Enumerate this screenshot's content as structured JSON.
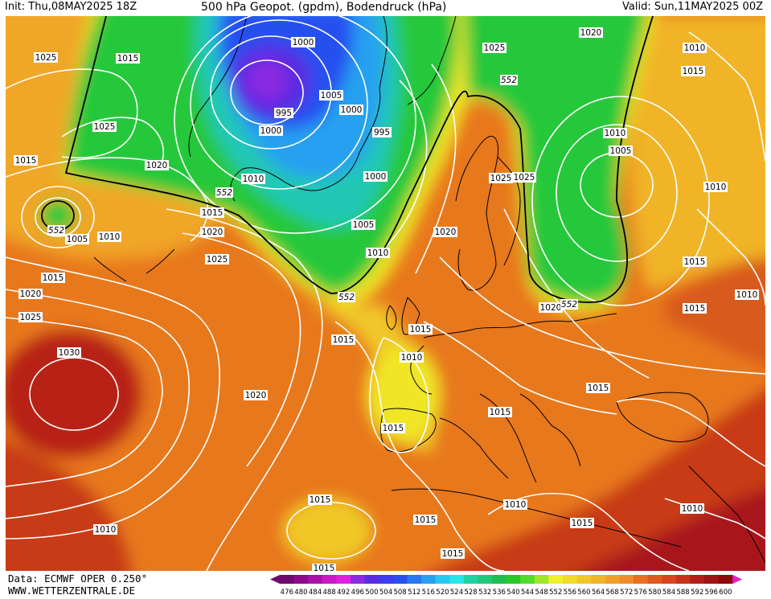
{
  "header": {
    "init": "Init: Thu,08MAY2025 18Z",
    "title": "500 hPa Geopot. (gpdm), Bodendruck (hPa)",
    "valid": "Valid: Sun,11MAY2025 00Z"
  },
  "footer": {
    "data_source": "Data: ECMWF OPER 0.250°",
    "website": "WWW.WETTERZENTRALE.DE"
  },
  "legend": {
    "values": [
      "476",
      "480",
      "484",
      "488",
      "492",
      "496",
      "500",
      "504",
      "508",
      "512",
      "516",
      "520",
      "524",
      "528",
      "532",
      "536",
      "540",
      "544",
      "548",
      "552",
      "556",
      "560",
      "564",
      "568",
      "572",
      "576",
      "580",
      "584",
      "588",
      "592",
      "596",
      "600"
    ],
    "colors": [
      "#6e0a6e",
      "#8c0a8c",
      "#aa10aa",
      "#c818c8",
      "#e020e0",
      "#8a2be2",
      "#5a2be2",
      "#3c3cf0",
      "#2850f0",
      "#2878f0",
      "#28a0f0",
      "#28c8f0",
      "#28e6e6",
      "#20d2a0",
      "#20c878",
      "#20be50",
      "#28c828",
      "#50dc28",
      "#a0e628",
      "#f0f028",
      "#f0dc28",
      "#f0c828",
      "#f0b428",
      "#f0a028",
      "#f08c28",
      "#e87020",
      "#e05a1e",
      "#d8461c",
      "#c8321a",
      "#b41e18",
      "#a01414",
      "#8c0a0a"
    ]
  },
  "map": {
    "isobar_labels": [
      {
        "id": "l1",
        "text": "1025"
      },
      {
        "id": "l2",
        "text": "1015"
      },
      {
        "id": "l3",
        "text": "1000"
      },
      {
        "id": "l4",
        "text": "1025"
      },
      {
        "id": "l5",
        "text": "1020"
      },
      {
        "id": "l6",
        "text": "1005"
      },
      {
        "id": "l7",
        "text": "1000"
      },
      {
        "id": "l8",
        "text": "995"
      },
      {
        "id": "l9",
        "text": "1000"
      },
      {
        "id": "l10",
        "text": "995"
      },
      {
        "id": "l11",
        "text": "1025"
      },
      {
        "id": "l12",
        "text": "1015"
      },
      {
        "id": "l13",
        "text": "1020"
      },
      {
        "id": "l14",
        "text": "1010"
      },
      {
        "id": "l15",
        "text": "1000"
      },
      {
        "id": "l16",
        "text": "1005"
      },
      {
        "id": "l17",
        "text": "1015"
      },
      {
        "id": "l18",
        "text": "1020"
      },
      {
        "id": "l19",
        "text": "1010"
      },
      {
        "id": "l20",
        "text": "1005"
      },
      {
        "id": "l21",
        "text": "1025"
      },
      {
        "id": "l22",
        "text": "1015"
      },
      {
        "id": "l23",
        "text": "1020"
      },
      {
        "id": "l24",
        "text": "1025"
      },
      {
        "id": "l25",
        "text": "1030"
      },
      {
        "id": "l26",
        "text": "1010"
      },
      {
        "id": "l27",
        "text": "1020"
      },
      {
        "id": "l28",
        "text": "1015"
      },
      {
        "id": "l29",
        "text": "1015"
      },
      {
        "id": "l30",
        "text": "1010"
      },
      {
        "id": "l31",
        "text": "1015"
      },
      {
        "id": "l32",
        "text": "1025"
      },
      {
        "id": "l33",
        "text": "1025"
      },
      {
        "id": "l34",
        "text": "1020"
      },
      {
        "id": "l35",
        "text": "1020"
      },
      {
        "id": "l36",
        "text": "1015"
      },
      {
        "id": "l37",
        "text": "1010"
      },
      {
        "id": "l38",
        "text": "1015"
      },
      {
        "id": "l39",
        "text": "1015"
      },
      {
        "id": "l40",
        "text": "1010"
      },
      {
        "id": "l41",
        "text": "1015"
      },
      {
        "id": "l42",
        "text": "1015"
      },
      {
        "id": "l43",
        "text": "1015"
      },
      {
        "id": "l44",
        "text": "1010"
      },
      {
        "id": "l45",
        "text": "1005"
      },
      {
        "id": "l46",
        "text": "1010"
      },
      {
        "id": "l47",
        "text": "1015"
      },
      {
        "id": "l48",
        "text": "1010"
      },
      {
        "id": "l49",
        "text": "1015"
      },
      {
        "id": "l50",
        "text": "1010"
      },
      {
        "id": "l51",
        "text": "1015"
      },
      {
        "id": "l52",
        "text": "1020"
      },
      {
        "id": "l53",
        "text": "1015"
      },
      {
        "id": "l54",
        "text": "1010"
      }
    ],
    "contour_labels": [
      {
        "id": "c1",
        "text": "552"
      },
      {
        "id": "c2",
        "text": "552"
      },
      {
        "id": "c3",
        "text": "552"
      },
      {
        "id": "c4",
        "text": "552"
      },
      {
        "id": "c5",
        "text": "552"
      }
    ],
    "colors": {
      "isobar": "#ffffff",
      "contour552": "#000000",
      "coast": "#000000"
    }
  }
}
